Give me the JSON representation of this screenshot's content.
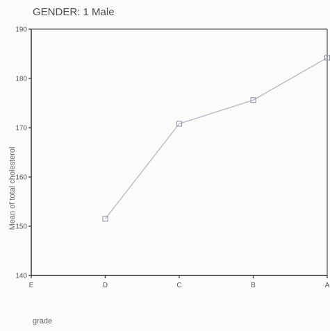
{
  "chart_data": {
    "type": "line",
    "title": "GENDER:    1  Male",
    "xlabel": "grade",
    "ylabel": "Mean of total cholesterol",
    "categories": [
      "E",
      "D",
      "C",
      "B",
      "A"
    ],
    "series": [
      {
        "values": [
          null,
          151.5,
          170.8,
          175.6,
          184.2
        ]
      }
    ],
    "ylim": [
      140,
      190
    ],
    "yticks": [
      140,
      150,
      160,
      170,
      180,
      190
    ],
    "ytick_labels": [
      "140",
      "150",
      "160",
      "170",
      "180",
      "190"
    ],
    "grid": false,
    "legend": "none",
    "colors": {
      "line": "#b4b6c4",
      "marker": "#8c8ea0",
      "axis": "#2a2a2a",
      "plot_border": "#2a2a2a",
      "background": "#fbfbfa"
    }
  }
}
